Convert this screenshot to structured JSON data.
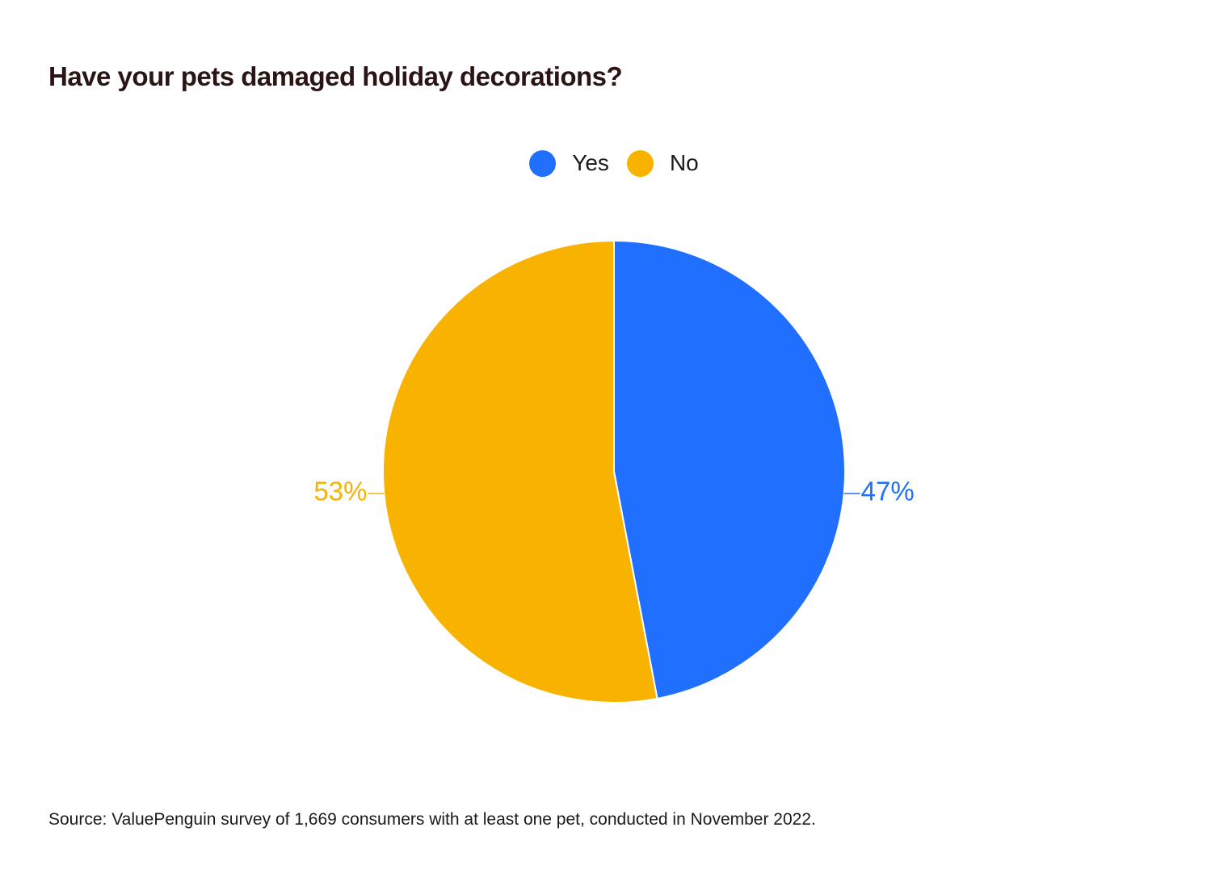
{
  "chart_data": {
    "type": "pie",
    "title": "Have your pets damaged holiday decorations?",
    "categories": [
      "Yes",
      "No"
    ],
    "values": [
      47,
      53
    ],
    "data_labels": [
      "47%",
      "53%"
    ],
    "colors": [
      "#206ffe",
      "#f8b200"
    ],
    "legend_position": "top-center",
    "start_angle": "12 o'clock",
    "direction": "clockwise"
  },
  "source": "Source: ValuePenguin survey of 1,669 consumers with at least one pet, conducted in November 2022."
}
